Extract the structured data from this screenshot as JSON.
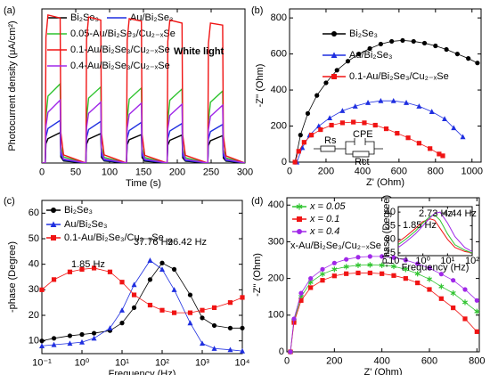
{
  "chart_data": [
    {
      "type": "line",
      "panel_label": "(a)",
      "x_label": "Time (s)",
      "y_label": "Photocurrent density (μA/cm²)",
      "xlim": [
        0,
        300
      ],
      "xticks": [
        0,
        50,
        100,
        150,
        200,
        250,
        300
      ],
      "ylim": [
        0,
        760
      ],
      "annotations": [
        {
          "text": "White light",
          "color": "#000000"
        }
      ],
      "x": [
        0,
        5,
        6,
        9,
        27,
        28,
        32,
        65,
        66,
        69,
        87,
        88,
        92,
        125,
        126,
        129,
        147,
        148,
        152,
        185,
        186,
        189,
        207,
        208,
        212,
        245,
        246,
        249,
        267,
        268,
        272,
        300
      ],
      "series": [
        {
          "name": "Bi₂Se₃",
          "color": "#000000",
          "values": [
            0,
            0,
            95,
            120,
            150,
            30,
            10,
            0,
            92,
            118,
            145,
            28,
            10,
            0,
            90,
            115,
            140,
            27,
            9,
            0,
            88,
            112,
            138,
            26,
            9,
            0,
            86,
            110,
            135,
            25,
            9,
            0
          ]
        },
        {
          "name": "Au/Bi₂Se₃",
          "color": "#1f2fe0",
          "values": [
            0,
            0,
            130,
            170,
            210,
            40,
            15,
            0,
            125,
            165,
            205,
            38,
            14,
            0,
            122,
            160,
            200,
            37,
            14,
            0,
            120,
            158,
            195,
            36,
            13,
            0,
            118,
            155,
            190,
            35,
            13,
            0
          ]
        },
        {
          "name": "0.05-Au/Bi₂Se₃/Cu₂₋ₓSe",
          "color": "#2fc42f",
          "values": [
            0,
            0,
            230,
            330,
            390,
            80,
            30,
            0,
            220,
            320,
            375,
            75,
            28,
            0,
            215,
            315,
            370,
            72,
            27,
            0,
            210,
            310,
            365,
            70,
            26,
            0,
            205,
            300,
            355,
            68,
            25,
            0
          ]
        },
        {
          "name": "0.1-Au/Bi₂Se₃/Cu₂₋ₓSe",
          "color": "#f01414",
          "values": [
            0,
            0,
            620,
            730,
            715,
            150,
            40,
            0,
            610,
            720,
            705,
            145,
            40,
            0,
            605,
            712,
            700,
            140,
            38,
            0,
            600,
            705,
            690,
            138,
            38,
            0,
            590,
            690,
            680,
            135,
            35,
            0
          ]
        },
        {
          "name": "0.4-Au/Bi₂Se₃/Cu₂₋ₓSe",
          "color": "#a028e8",
          "values": [
            0,
            0,
            180,
            250,
            310,
            60,
            20,
            0,
            175,
            245,
            300,
            58,
            20,
            0,
            170,
            240,
            295,
            56,
            19,
            0,
            168,
            235,
            290,
            55,
            18,
            0,
            165,
            230,
            285,
            54,
            18,
            0
          ]
        }
      ]
    },
    {
      "type": "scatter",
      "panel_label": "(b)",
      "x_label": "Z' (Ohm)",
      "y_label": "-Z'' (Ohm)",
      "xlim": [
        0,
        1050
      ],
      "xticks": [
        0,
        200,
        400,
        600,
        800,
        1000
      ],
      "ylim": [
        0,
        850
      ],
      "yticks": [
        0,
        200,
        400,
        600,
        800
      ],
      "circuit_labels": [
        "Rs",
        "CPE",
        "Rct"
      ],
      "series": [
        {
          "name": "Bi₂Se₃",
          "color": "#000000",
          "marker": "circle",
          "x": [
            30,
            60,
            100,
            150,
            200,
            260,
            320,
            380,
            440,
            500,
            560,
            620,
            680,
            740,
            800,
            860,
            920,
            980,
            1030
          ],
          "values": [
            0,
            150,
            270,
            370,
            440,
            510,
            560,
            600,
            630,
            655,
            670,
            675,
            670,
            660,
            645,
            625,
            600,
            575,
            550
          ]
        },
        {
          "name": "Au/Bi₂Se₃",
          "color": "#1f2fe0",
          "marker": "triangle",
          "x": [
            40,
            70,
            110,
            160,
            220,
            290,
            360,
            430,
            500,
            570,
            640,
            710,
            780,
            850,
            900,
            950
          ],
          "values": [
            0,
            80,
            150,
            200,
            245,
            285,
            310,
            330,
            340,
            340,
            330,
            310,
            280,
            240,
            190,
            140
          ]
        },
        {
          "name": "0.1-Au/Bi₂Se₃/Cu₂₋ₓSe",
          "color": "#f01414",
          "marker": "square",
          "x": [
            30,
            50,
            80,
            120,
            170,
            230,
            290,
            350,
            410,
            470,
            530,
            590,
            650,
            710,
            770,
            820,
            840
          ],
          "values": [
            0,
            60,
            110,
            150,
            180,
            205,
            218,
            222,
            218,
            205,
            185,
            160,
            135,
            105,
            75,
            45,
            35
          ]
        }
      ]
    },
    {
      "type": "scatter",
      "panel_label": "(c)",
      "x_label": "Frequency (Hz)",
      "y_label": "-phase (Degree)",
      "xlog": true,
      "xlim": [
        0.1,
        10000
      ],
      "xticks": [
        {
          "value": 0.1,
          "label": "10⁻¹"
        },
        {
          "value": 1,
          "label": "10⁰"
        },
        {
          "value": 10,
          "label": "10¹"
        },
        {
          "value": 100,
          "label": "10²"
        },
        {
          "value": 1000,
          "label": "10³"
        },
        {
          "value": 10000,
          "label": "10⁴"
        }
      ],
      "ylim": [
        5,
        65
      ],
      "yticks": [
        10,
        20,
        30,
        40,
        50,
        60
      ],
      "annotations": [
        {
          "text": "1.85 Hz",
          "color": "#f01414"
        },
        {
          "text": "37.76 Hz",
          "color": "#1f2fe0"
        },
        {
          "text": "96.42 Hz",
          "color": "#000000"
        }
      ],
      "x": [
        0.1,
        0.2,
        0.5,
        1,
        2,
        5,
        10,
        20,
        50,
        100,
        200,
        500,
        1000,
        2000,
        5000,
        10000
      ],
      "series": [
        {
          "name": "Bi₂Se₃",
          "color": "#000000",
          "marker": "circle",
          "values": [
            10,
            11,
            12,
            12.5,
            13,
            14,
            17,
            23,
            34,
            40.5,
            38,
            28,
            19,
            16,
            15,
            15
          ]
        },
        {
          "name": "Au/Bi₂Se₃",
          "color": "#1f2fe0",
          "marker": "triangle",
          "values": [
            8,
            8.5,
            9,
            9.5,
            11,
            15,
            22,
            32,
            41.5,
            38,
            30,
            17,
            9,
            7,
            6.5,
            6
          ]
        },
        {
          "name": "0.1-Au/Bi₂Se₃/Cu₂₋ₓSe",
          "color": "#f01414",
          "marker": "square",
          "values": [
            30,
            34,
            37,
            38,
            38.5,
            37,
            33,
            28,
            24,
            22,
            21,
            21,
            22,
            23,
            25,
            27
          ]
        }
      ]
    },
    {
      "type": "scatter",
      "panel_label": "(d)",
      "x_label": "Z' (Ohm)",
      "y_label": "-Z'' (Ohm)",
      "xlim": [
        0,
        810
      ],
      "xticks": [
        0,
        200,
        400,
        600,
        800
      ],
      "ylim": [
        0,
        420
      ],
      "yticks": [
        0,
        100,
        200,
        300,
        400
      ],
      "annotations": [
        {
          "text": "x-Au/Bi₂Se₃/Cu₂₋ₓSe",
          "color": "#000000"
        }
      ],
      "x": [
        15,
        30,
        60,
        100,
        150,
        200,
        250,
        300,
        350,
        400,
        450,
        500,
        550,
        600,
        650,
        700,
        750,
        800
      ],
      "series": [
        {
          "name": "x = 0.05",
          "color": "#2fc42f",
          "marker": "star",
          "values": [
            0,
            85,
            150,
            190,
            212,
            225,
            232,
            236,
            237,
            236,
            233,
            225,
            213,
            198,
            178,
            160,
            135,
            110
          ]
        },
        {
          "name": "x = 0.1",
          "color": "#f01414",
          "marker": "square",
          "values": [
            0,
            80,
            140,
            175,
            195,
            207,
            213,
            215,
            215,
            213,
            208,
            200,
            188,
            170,
            145,
            120,
            90,
            55
          ]
        },
        {
          "name": "x = 0.4",
          "color": "#a028e8",
          "marker": "circle",
          "values": [
            0,
            90,
            160,
            200,
            225,
            242,
            252,
            258,
            260,
            260,
            257,
            250,
            240,
            228,
            212,
            195,
            170,
            140
          ]
        }
      ]
    },
    {
      "type": "line",
      "x_label": "Frequency (Hz)",
      "y_label": "-Phase (Degree)",
      "xlog": true,
      "xlim": [
        0.1,
        100
      ],
      "xticks": [
        {
          "value": 0.1,
          "label": "10⁻¹"
        },
        {
          "value": 1,
          "label": "10⁰"
        },
        {
          "value": 10,
          "label": "10¹"
        },
        {
          "value": 100,
          "label": "10²"
        }
      ],
      "ylim": [
        24,
        42
      ],
      "yticks": [
        25,
        30,
        35,
        40
      ],
      "annotations": [
        {
          "text": "1.85 Hz",
          "color": "#f01414"
        },
        {
          "text": "2.73 Hz",
          "color": "#2fc42f"
        },
        {
          "text": "4.44 Hz",
          "color": "#a028e8"
        }
      ],
      "x": [
        0.1,
        0.2,
        0.5,
        1,
        2,
        3,
        5,
        10,
        20,
        50,
        100
      ],
      "series": [
        {
          "color": "#f01414",
          "values": [
            29,
            31,
            34,
            36.5,
            37.5,
            37,
            34,
            30,
            27,
            25.5,
            25
          ]
        },
        {
          "color": "#2fc42f",
          "values": [
            28,
            30,
            33,
            36,
            38.5,
            39,
            37,
            32,
            28,
            26,
            25
          ]
        },
        {
          "color": "#a028e8",
          "values": [
            27,
            29,
            32,
            35,
            38,
            39.5,
            40,
            36,
            31,
            27,
            25.5
          ]
        }
      ]
    }
  ]
}
